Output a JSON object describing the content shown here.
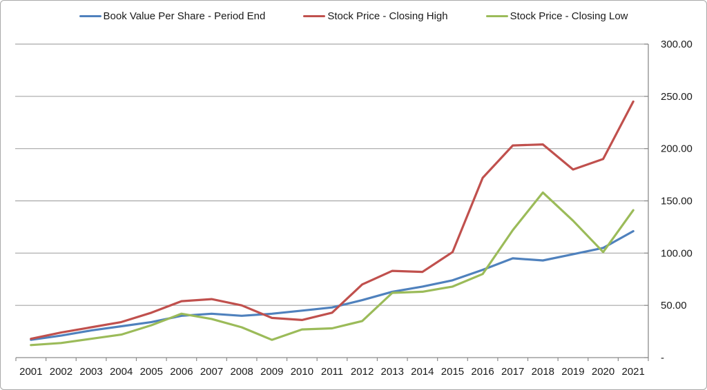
{
  "chart": {
    "background_color": "#ffffff",
    "border_color": "#a8a8a8",
    "gridline_color": "#a6a6a6",
    "axis_line_color": "#8c8c8c",
    "text_color": "#1a1a1a",
    "tick_font_size": 15,
    "legend_font_size": 15
  },
  "chart_data": {
    "type": "line",
    "title": "",
    "xlabel": "",
    "ylabel": "",
    "grid": true,
    "legend_position": "top-center",
    "ylim": [
      0,
      300
    ],
    "ytick_step": 50,
    "ytick_labels": [
      "-",
      "50.00",
      "100.00",
      "150.00",
      "200.00",
      "250.00",
      "300.00"
    ],
    "categories": [
      "2001",
      "2002",
      "2003",
      "2004",
      "2005",
      "2006",
      "2007",
      "2008",
      "2009",
      "2010",
      "2011",
      "2012",
      "2013",
      "2014",
      "2015",
      "2016",
      "2017",
      "2018",
      "2019",
      "2020",
      "2021"
    ],
    "series": [
      {
        "name": "Book Value Per Share - Period End",
        "color": "#4F81BD",
        "values": [
          17,
          21,
          26,
          30,
          34,
          40,
          42,
          40,
          42,
          45,
          48,
          55,
          63,
          68,
          74,
          84,
          95,
          93,
          99,
          105,
          121
        ]
      },
      {
        "name": "Stock Price - Closing High",
        "color": "#C0504D",
        "values": [
          18,
          24,
          29,
          34,
          43,
          54,
          56,
          50,
          38,
          36,
          43,
          70,
          83,
          82,
          101,
          172,
          203,
          204,
          180,
          190,
          245
        ]
      },
      {
        "name": "Stock Price - Closing Low",
        "color": "#9BBB59",
        "values": [
          12,
          14,
          18,
          22,
          31,
          42,
          37,
          29,
          17,
          27,
          28,
          35,
          62,
          63,
          68,
          80,
          122,
          158,
          131,
          101,
          141
        ]
      }
    ]
  }
}
